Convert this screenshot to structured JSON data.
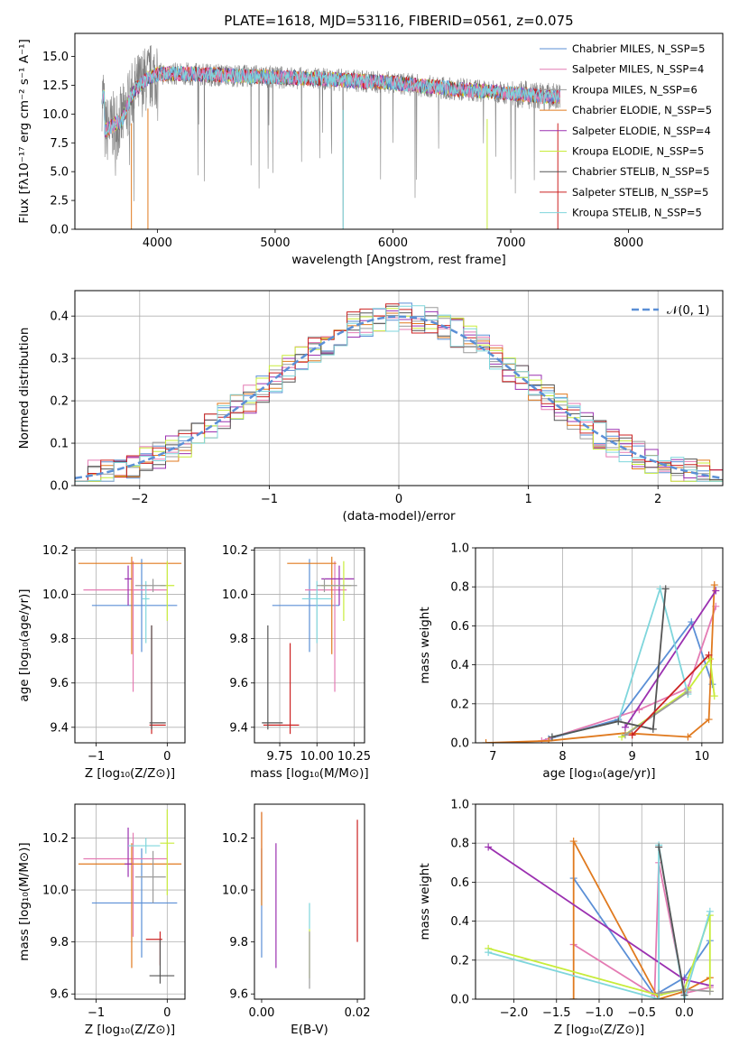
{
  "figure": {
    "title": "PLATE=1618, MJD=53116, FIBERID=0561, z=0.075"
  },
  "colors": {
    "chabrier_miles": "#5b8fd6",
    "salpeter_miles": "#e47bb3",
    "kroupa_miles": "#9b9b9b",
    "chabrier_elodie": "#e07a1f",
    "salpeter_elodie": "#9b30b0",
    "kroupa_elodie": "#c8ec3a",
    "chabrier_stelib": "#555555",
    "salpeter_stelib": "#cc2222",
    "kroupa_stelib": "#7fd6dc",
    "axis": "#000000",
    "grid": "#b0b0b0",
    "normal_curve": "#5b8fd6"
  },
  "chart_data": [
    {
      "id": "spectrum",
      "type": "line",
      "title": "PLATE=1618, MJD=53116, FIBERID=0561, z=0.075",
      "xlabel": "wavelength [Angstrom, rest frame]",
      "ylabel": "Flux [fλ10⁻¹⁷ erg cm⁻² s⁻¹ A⁻¹]",
      "xlim": [
        3300,
        8800
      ],
      "ylim": [
        0,
        17
      ],
      "xticks": [
        "4000",
        "5000",
        "6000",
        "7000",
        "8000"
      ],
      "yticks": [
        "0.0",
        "2.5",
        "5.0",
        "7.5",
        "10.0",
        "12.5",
        "15.0"
      ],
      "grid": false,
      "legend_position": "top-right",
      "legend": [
        "Chabrier MILES, N_SSP=5",
        "Salpeter MILES, N_SSP=4",
        "Kroupa MILES, N_SSP=6",
        "Chabrier ELODIE, N_SSP=5",
        "Salpeter ELODIE, N_SSP=4",
        "Kroupa ELODIE, N_SSP=5",
        "Chabrier STELIB, N_SSP=5",
        "Salpeter STELIB, N_SSP=5",
        "Kroupa STELIB, N_SSP=5"
      ],
      "data_envelope": {
        "x": [
          3550,
          3700,
          3800,
          3900,
          4000,
          4200,
          4500,
          5000,
          5500,
          6000,
          6500,
          7000,
          7300
        ],
        "y": [
          8.5,
          9.5,
          12.0,
          13.0,
          13.5,
          13.5,
          13.4,
          13.2,
          13.0,
          12.7,
          12.2,
          11.8,
          11.5
        ]
      }
    },
    {
      "id": "residuals",
      "type": "histogram",
      "xlabel": "(data-model)/error",
      "ylabel": "Normed distribution",
      "xlim": [
        -2.5,
        2.5
      ],
      "ylim": [
        0,
        0.46
      ],
      "xticks": [
        "−2",
        "−1",
        "0",
        "1",
        "2"
      ],
      "yticks": [
        "0.0",
        "0.1",
        "0.2",
        "0.3",
        "0.4"
      ],
      "grid": true,
      "legend_position": "top-right",
      "legend": [
        "𝒩(0, 1)"
      ]
    },
    {
      "id": "age_vs_Z",
      "type": "errorbar",
      "xlabel": "Z [log₁₀(Z/Z⊙)]",
      "ylabel": "age  [log₁₀(age/yr)]",
      "xlim": [
        -1.3,
        0.25
      ],
      "ylim": [
        9.33,
        10.21
      ],
      "xticks": [
        "−1",
        "0"
      ],
      "yticks": [
        "9.4",
        "9.6",
        "9.8",
        "10.0",
        "10.2"
      ],
      "grid": true,
      "points": [
        {
          "x": -0.36,
          "xerr": [
            0.7,
            0.5
          ],
          "y": 9.95,
          "yerr": [
            0.21,
            0.21
          ]
        },
        {
          "x": -0.48,
          "xerr": [
            0.7,
            0.48
          ],
          "y": 10.02,
          "yerr": [
            0.46,
            0.13
          ]
        },
        {
          "x": -0.5,
          "xerr": [
            0.75,
            0.7
          ],
          "y": 10.14,
          "yerr": [
            0.41,
            0.03
          ]
        },
        {
          "x": -0.55,
          "xerr": [
            0.05,
            0.05
          ],
          "y": 10.07,
          "yerr": [
            0.12,
            0.06
          ]
        },
        {
          "x": 0.0,
          "xerr": [
            0.1,
            0.1
          ],
          "y": 10.04,
          "yerr": [
            0.16,
            0.11
          ]
        },
        {
          "x": -0.3,
          "xerr": [
            0.05,
            0.05
          ],
          "y": 9.98,
          "yerr": [
            0.2,
            0.08
          ]
        },
        {
          "x": -0.2,
          "xerr": [
            0.25,
            0.18
          ],
          "y": 10.04,
          "yerr": [
            0.03,
            0.03
          ]
        },
        {
          "x": -0.22,
          "xerr": [
            0.03,
            0.2
          ],
          "y": 9.41,
          "yerr": [
            0.04,
            0.45
          ]
        },
        {
          "x": -0.22,
          "xerr": [
            0.03,
            0.2
          ],
          "y": 9.42,
          "yerr": [
            0.03,
            0.44
          ]
        }
      ]
    },
    {
      "id": "age_vs_mass",
      "type": "errorbar",
      "xlabel": "mass [log₁₀(M/M⊙)]",
      "ylabel": "",
      "xlim": [
        9.58,
        10.32
      ],
      "ylim": [
        9.33,
        10.21
      ],
      "xticks": [
        "9.75",
        "10.00",
        "10.25"
      ],
      "yticks": [
        "9.4",
        "9.6",
        "9.8",
        "10.0",
        "10.2"
      ],
      "grid": true,
      "points": [
        {
          "x": 9.95,
          "xerr": [
            0.25,
            0.2
          ],
          "y": 9.95,
          "yerr": [
            0.21,
            0.21
          ]
        },
        {
          "x": 10.12,
          "xerr": [
            0.2,
            0.08
          ],
          "y": 10.02,
          "yerr": [
            0.46,
            0.13
          ]
        },
        {
          "x": 10.1,
          "xerr": [
            0.3,
            0.03
          ],
          "y": 10.14,
          "yerr": [
            0.41,
            0.03
          ]
        },
        {
          "x": 10.15,
          "xerr": [
            0.12,
            0.1
          ],
          "y": 10.07,
          "yerr": [
            0.12,
            0.06
          ]
        },
        {
          "x": 10.18,
          "xerr": [
            0.15,
            0.05
          ],
          "y": 10.04,
          "yerr": [
            0.16,
            0.11
          ]
        },
        {
          "x": 10.0,
          "xerr": [
            0.1,
            0.1
          ],
          "y": 9.98,
          "yerr": [
            0.2,
            0.08
          ]
        },
        {
          "x": 10.05,
          "xerr": [
            0.05,
            0.22
          ],
          "y": 10.04,
          "yerr": [
            0.03,
            0.03
          ]
        },
        {
          "x": 9.82,
          "xerr": [
            0.18,
            0.06
          ],
          "y": 9.41,
          "yerr": [
            0.04,
            0.37
          ]
        },
        {
          "x": 9.67,
          "xerr": [
            0.04,
            0.1
          ],
          "y": 9.42,
          "yerr": [
            0.03,
            0.44
          ]
        }
      ]
    },
    {
      "id": "weight_vs_age",
      "type": "line",
      "xlabel": "age  [log₁₀(age/yr)]",
      "ylabel": "mass weight",
      "xlim": [
        6.75,
        10.3
      ],
      "ylim": [
        0,
        1
      ],
      "xticks": [
        "7",
        "8",
        "9",
        "10"
      ],
      "yticks": [
        "0.0",
        "0.2",
        "0.4",
        "0.6",
        "0.8",
        "1.0"
      ],
      "grid": true,
      "series": [
        {
          "x": [
            7.8,
            8.8,
            9.85,
            10.15
          ],
          "y": [
            0.02,
            0.12,
            0.62,
            0.3
          ]
        },
        {
          "x": [
            7.7,
            9.1,
            9.8,
            10.2
          ],
          "y": [
            0.01,
            0.17,
            0.28,
            0.7
          ]
        },
        {
          "x": [
            6.9,
            7.8,
            8.9,
            9.8,
            10.1,
            10.18
          ],
          "y": [
            0.0,
            0.01,
            0.05,
            0.03,
            0.12,
            0.81
          ]
        },
        {
          "x": [
            8.9,
            10.2
          ],
          "y": [
            0.08,
            0.78
          ]
        },
        {
          "x": [
            8.85,
            9.8,
            10.12,
            10.18
          ],
          "y": [
            0.03,
            0.27,
            0.43,
            0.24
          ]
        },
        {
          "x": [
            7.85,
            8.8,
            9.4,
            9.8
          ],
          "y": [
            0.03,
            0.11,
            0.79,
            0.25
          ]
        },
        {
          "x": [
            8.9,
            9.8
          ],
          "y": [
            0.04,
            0.26
          ]
        },
        {
          "x": [
            7.85,
            8.8,
            9.3,
            9.48
          ],
          "y": [
            0.03,
            0.11,
            0.07,
            0.79
          ]
        },
        {
          "x": [
            9.0,
            10.1
          ],
          "y": [
            0.04,
            0.45
          ]
        }
      ]
    },
    {
      "id": "mass_vs_Z",
      "type": "errorbar",
      "xlabel": "Z [log₁₀(Z/Z⊙)]",
      "ylabel": "mass [log₁₀(M/M⊙)]",
      "xlim": [
        -1.3,
        0.25
      ],
      "ylim": [
        9.58,
        10.33
      ],
      "xticks": [
        "−1",
        "0"
      ],
      "yticks": [
        "9.6",
        "9.8",
        "10.0",
        "10.2"
      ],
      "grid": true,
      "points": [
        {
          "x": -0.36,
          "xerr": [
            0.7,
            0.5
          ],
          "y": 9.95,
          "yerr": [
            0.21,
            0.21
          ]
        },
        {
          "x": -0.48,
          "xerr": [
            0.7,
            0.48
          ],
          "y": 10.12,
          "yerr": [
            0.3,
            0.1
          ]
        },
        {
          "x": -0.5,
          "xerr": [
            0.75,
            0.7
          ],
          "y": 10.1,
          "yerr": [
            0.4,
            0.08
          ]
        },
        {
          "x": -0.55,
          "xerr": [
            0.05,
            0.05
          ],
          "y": 10.1,
          "yerr": [
            0.05,
            0.14
          ]
        },
        {
          "x": 0.0,
          "xerr": [
            0.1,
            0.1
          ],
          "y": 10.18,
          "yerr": [
            0.2,
            0.13
          ]
        },
        {
          "x": -0.3,
          "xerr": [
            0.25,
            0.2
          ],
          "y": 10.17,
          "yerr": [
            0.03,
            0.03
          ]
        },
        {
          "x": -0.2,
          "xerr": [
            0.25,
            0.18
          ],
          "y": 10.05,
          "yerr": [
            0.1,
            0.1
          ]
        },
        {
          "x": -0.1,
          "xerr": [
            0.2,
            0.03
          ],
          "y": 9.81,
          "yerr": [
            0.1,
            0.03
          ]
        },
        {
          "x": -0.1,
          "xerr": [
            0.15,
            0.2
          ],
          "y": 9.67,
          "yerr": [
            0.03,
            0.14
          ]
        }
      ]
    },
    {
      "id": "mass_vs_ebv",
      "type": "errorbar",
      "xlabel": "E(B-V)",
      "ylabel": "",
      "xlim": [
        -0.0015,
        0.0215
      ],
      "ylim": [
        9.58,
        10.33
      ],
      "xticks": [
        "0.00",
        "0.02"
      ],
      "yticks": [
        "9.8",
        "10.0",
        "10.2",
        "9.6"
      ],
      "grid": false,
      "points": [
        {
          "x": 0.0,
          "y": 9.95,
          "yerr": [
            0.21,
            0.21
          ]
        },
        {
          "x": 0.0,
          "y": 10.2,
          "yerr": [
            0.2,
            0.1
          ]
        },
        {
          "x": 0.0,
          "y": 10.12,
          "yerr": [
            0.18,
            0.18
          ]
        },
        {
          "x": 0.003,
          "y": 10.0,
          "yerr": [
            0.3,
            0.18
          ]
        },
        {
          "x": 0.01,
          "y": 9.82,
          "yerr": [
            0.16,
            0.03
          ]
        },
        {
          "x": 0.01,
          "y": 9.9,
          "yerr": [
            0.05,
            0.05
          ]
        },
        {
          "x": 0.01,
          "y": 9.72,
          "yerr": [
            0.1,
            0.12
          ]
        },
        {
          "x": 0.02,
          "y": 10.05,
          "yerr": [
            0.25,
            0.22
          ]
        }
      ]
    },
    {
      "id": "weight_vs_Z",
      "type": "line",
      "xlabel": "Z [log₁₀(Z/Z⊙)]",
      "ylabel": "mass weight",
      "xlim": [
        -2.45,
        0.45
      ],
      "ylim": [
        0,
        1
      ],
      "xticks": [
        "−2.0",
        "−1.5",
        "−1.0",
        "−0.5",
        "0.0"
      ],
      "yticks": [
        "0.0",
        "0.2",
        "0.4",
        "0.6",
        "0.8",
        "1.0"
      ],
      "grid": true,
      "series": [
        {
          "x": [
            -1.3,
            -0.35,
            0.0,
            0.3
          ],
          "y": [
            0.62,
            0.02,
            0.11,
            0.3
          ]
        },
        {
          "x": [
            -1.3,
            -0.35,
            -0.3,
            0.0,
            0.3
          ],
          "y": [
            0.28,
            0.02,
            0.7,
            0.03,
            0.06
          ]
        },
        {
          "x": [
            -1.3,
            -1.3,
            -0.3,
            0.0,
            0.3
          ],
          "y": [
            0.0,
            0.81,
            0.0,
            0.04,
            0.11
          ]
        },
        {
          "x": [
            -2.3,
            0.0,
            0.3
          ],
          "y": [
            0.78,
            0.1,
            0.07
          ]
        },
        {
          "x": [
            -2.3,
            -0.3,
            0.0,
            0.3,
            0.3
          ],
          "y": [
            0.26,
            0.02,
            0.05,
            0.43,
            0.04
          ]
        },
        {
          "x": [
            -2.3,
            -0.3,
            -0.3,
            0.0,
            0.3
          ],
          "y": [
            0.24,
            0.0,
            0.79,
            0.0,
            0.45
          ]
        },
        {
          "x": [
            -0.3,
            0.0,
            0.3
          ],
          "y": [
            0.03,
            0.05,
            0.04
          ]
        },
        {
          "x": [
            -0.3,
            0.0
          ],
          "y": [
            0.78,
            0.02
          ]
        }
      ]
    }
  ]
}
